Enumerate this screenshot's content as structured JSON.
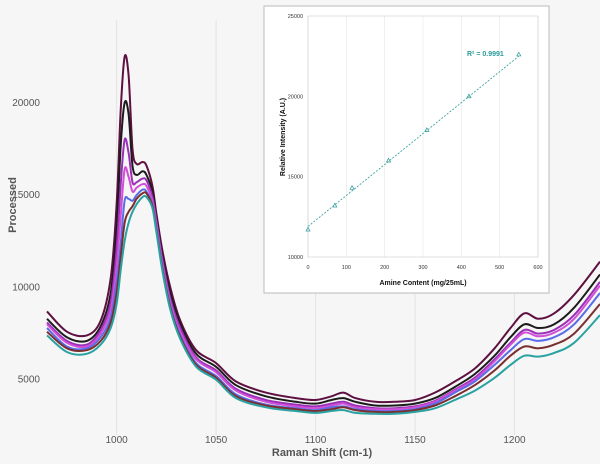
{
  "chart_data": [
    {
      "type": "line",
      "xlabel": "Raman Shift (cm-1)",
      "ylabel": "Processed",
      "xlim": [
        965,
        1243
      ],
      "ylim": [
        2000,
        24500
      ],
      "x_ticks": [
        "1000",
        "1050",
        "1100",
        "1150",
        "1200"
      ],
      "y_ticks": [
        "5000",
        "10000",
        "15000",
        "20000"
      ],
      "grid": "vertical",
      "x": [
        965,
        975,
        985,
        992,
        997,
        1000,
        1002,
        1004,
        1006,
        1008,
        1010,
        1013,
        1015,
        1018,
        1020,
        1023,
        1027,
        1032,
        1040,
        1050,
        1060,
        1075,
        1090,
        1100,
        1108,
        1114,
        1120,
        1130,
        1140,
        1150,
        1160,
        1170,
        1180,
        1190,
        1198,
        1205,
        1212,
        1220,
        1230,
        1243
      ],
      "series": [
        {
          "color": "#5e1040",
          "values": [
            8700,
            7600,
            7400,
            8200,
            10500,
            14500,
            19500,
            22500,
            21500,
            17500,
            16700,
            16800,
            16600,
            15500,
            14000,
            12000,
            10000,
            8200,
            6600,
            5900,
            4900,
            4300,
            4000,
            3900,
            4100,
            4300,
            4000,
            3800,
            3800,
            3900,
            4300,
            4900,
            5600,
            6700,
            7800,
            8600,
            8300,
            8600,
            9600,
            11400
          ]
        },
        {
          "color": "#1c1c1c",
          "values": [
            8300,
            7300,
            7100,
            7900,
            9700,
            13200,
            17600,
            20000,
            19400,
            16600,
            16100,
            16300,
            16100,
            15200,
            13800,
            11700,
            9700,
            8000,
            6400,
            5700,
            4700,
            4100,
            3800,
            3700,
            3900,
            4000,
            3800,
            3600,
            3600,
            3700,
            4000,
            4600,
            5300,
            6300,
            7300,
            8000,
            7800,
            8000,
            8900,
            10700
          ]
        },
        {
          "color": "#9b2fb8",
          "values": [
            8100,
            7100,
            6900,
            7700,
            9200,
            12100,
            15500,
            18000,
            17300,
            15700,
            15700,
            15900,
            15800,
            14900,
            13600,
            11500,
            9400,
            7800,
            6200,
            5500,
            4500,
            3900,
            3650,
            3550,
            3700,
            3800,
            3600,
            3450,
            3450,
            3550,
            3850,
            4450,
            5100,
            6100,
            7000,
            7700,
            7500,
            7700,
            8500,
            10300
          ]
        },
        {
          "color": "#d14fd6",
          "values": [
            8000,
            7000,
            6800,
            7500,
            8800,
            11200,
            13800,
            16400,
            16000,
            15200,
            15400,
            15600,
            15500,
            14700,
            13400,
            11300,
            9200,
            7600,
            6100,
            5400,
            4400,
            3800,
            3550,
            3450,
            3600,
            3700,
            3500,
            3400,
            3400,
            3500,
            3800,
            4400,
            5000,
            6000,
            6900,
            7550,
            7350,
            7550,
            8300,
            10100
          ]
        },
        {
          "color": "#5a6ce8",
          "values": [
            7800,
            6800,
            6700,
            7300,
            8400,
            10300,
            12300,
            14700,
            14800,
            14700,
            15000,
            15300,
            15200,
            14500,
            13200,
            11100,
            9000,
            7400,
            5900,
            5200,
            4200,
            3650,
            3450,
            3350,
            3500,
            3550,
            3400,
            3300,
            3300,
            3400,
            3700,
            4300,
            4900,
            5800,
            6600,
            7200,
            7100,
            7300,
            8000,
            9700
          ]
        },
        {
          "color": "#7a2e2e",
          "values": [
            7600,
            6700,
            6600,
            7100,
            8100,
            9700,
            11600,
            13500,
            14100,
            14400,
            14800,
            15100,
            15100,
            14400,
            13100,
            11000,
            8900,
            7300,
            5800,
            5100,
            4100,
            3600,
            3400,
            3300,
            3400,
            3500,
            3350,
            3250,
            3250,
            3350,
            3600,
            4100,
            4700,
            5500,
            6300,
            6800,
            6700,
            6900,
            7500,
            9100
          ]
        },
        {
          "color": "#2aa2a2",
          "values": [
            7400,
            6500,
            6400,
            6900,
            7800,
            9100,
            10900,
            12500,
            13500,
            14100,
            14500,
            14900,
            14900,
            14300,
            13000,
            10900,
            8800,
            7200,
            5700,
            5000,
            4000,
            3500,
            3300,
            3200,
            3300,
            3350,
            3200,
            3150,
            3150,
            3250,
            3450,
            3900,
            4400,
            5100,
            5800,
            6300,
            6250,
            6450,
            7000,
            8500
          ]
        }
      ]
    },
    {
      "type": "scatter",
      "xlabel": "Amine Content (mg/25mL)",
      "ylabel": "Relative Intensity (A.U.)",
      "xlim": [
        0,
        600
      ],
      "ylim": [
        10000,
        25000
      ],
      "x_ticks": [
        "0",
        "100",
        "200",
        "300",
        "400",
        "500",
        "600"
      ],
      "y_ticks": [
        "10000",
        "15000",
        "20000",
        "25000"
      ],
      "grid": "vertical",
      "annotation": "R² = 0.9991",
      "points": {
        "x": [
          0,
          70,
          115,
          210,
          310,
          420,
          550
        ],
        "y": [
          11700,
          13200,
          14300,
          16000,
          17900,
          20000,
          22600
        ]
      },
      "trendline": {
        "x": [
          0,
          550
        ],
        "y": [
          11900,
          22500
        ]
      },
      "color": "#2a9a9a"
    }
  ]
}
